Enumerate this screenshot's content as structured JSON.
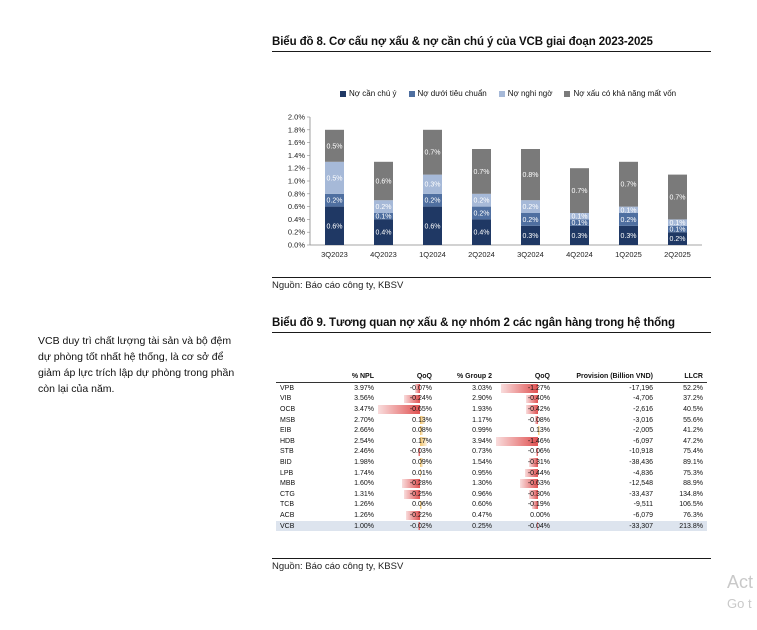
{
  "chart8": {
    "title": "Biểu đồ 8. Cơ cấu nợ xấu & nợ cần chú ý của VCB giai đoạn 2023-2025",
    "source": "Nguồn: Báo cáo công ty, KBSV"
  },
  "chart_data": {
    "type": "bar",
    "stacked": true,
    "title": "",
    "categories": [
      "3Q2023",
      "4Q2023",
      "1Q2024",
      "2Q2024",
      "3Q2024",
      "4Q2024",
      "1Q2025",
      "2Q2025"
    ],
    "series": [
      {
        "name": "Nợ cần chú ý",
        "color": "#1f3864",
        "values": [
          0.6,
          0.4,
          0.6,
          0.4,
          0.3,
          0.3,
          0.3,
          0.2
        ],
        "labels": [
          "0.6%",
          "0.4%",
          "0.6%",
          "0.4%",
          "0.3%",
          "0.3%",
          "0.3%",
          "0.2%"
        ]
      },
      {
        "name": "Nợ dưới tiêu chuẩn",
        "color": "#4f6fa0",
        "values": [
          0.2,
          0.1,
          0.2,
          0.2,
          0.2,
          0.1,
          0.2,
          0.1
        ],
        "labels": [
          "0.2%",
          "0.1%",
          "0.2%",
          "0.2%",
          "0.2%",
          "0.1%",
          "0.2%",
          "0.1%"
        ]
      },
      {
        "name": "Nợ nghi ngờ",
        "color": "#a6b9d8",
        "values": [
          0.5,
          0.2,
          0.3,
          0.2,
          0.2,
          0.1,
          0.1,
          0.1
        ],
        "labels": [
          "0.5%",
          "0.2%",
          "0.3%",
          "0.2%",
          "0.2%",
          "0.1%",
          "0.1%",
          "0.1%"
        ]
      },
      {
        "name": "Nợ xấu có khả năng mất vốn",
        "color": "#7a7a7a",
        "values": [
          0.5,
          0.6,
          0.7,
          0.7,
          0.8,
          0.7,
          0.7,
          0.7
        ],
        "labels": [
          "0.5%",
          "0.6%",
          "0.7%",
          "0.7%",
          "0.8%",
          "0.7%",
          "0.7%",
          "0.7%"
        ]
      }
    ],
    "ylim": [
      0,
      2.0
    ],
    "yticks": [
      "0.0%",
      "0.2%",
      "0.4%",
      "0.6%",
      "0.8%",
      "1.0%",
      "1.2%",
      "1.4%",
      "1.6%",
      "1.8%",
      "2.0%"
    ],
    "legend": "top",
    "grid": false
  },
  "side_text": "VCB duy trì chất lượng tài sản và bộ đệm dự phòng tốt nhất hệ thống, là cơ sở để giảm áp lực trích lập dự phòng trong phần còn lại của năm.",
  "chart9": {
    "title": "Biểu đồ 9. Tương quan nợ xấu & nợ nhóm 2 các ngân hàng trong hệ thống",
    "source": "Nguồn: Báo cáo công ty, KBSV",
    "headers": [
      "",
      "% NPL",
      "QoQ",
      "% Group 2",
      "QoQ",
      "Provision (Billion VND)",
      "LLCR"
    ],
    "rows": [
      {
        "bank": "VPB",
        "npl": "3.97%",
        "qoq1": "-0.07%",
        "qoq1_v": -0.07,
        "g2": "3.03%",
        "qoq2": "-1.27%",
        "qoq2_v": -1.27,
        "prov": "-17,196",
        "llcr": "52.2%"
      },
      {
        "bank": "VIB",
        "npl": "3.56%",
        "qoq1": "-0.24%",
        "qoq1_v": -0.24,
        "g2": "2.90%",
        "qoq2": "-0.40%",
        "qoq2_v": -0.4,
        "prov": "-4,706",
        "llcr": "37.2%"
      },
      {
        "bank": "OCB",
        "npl": "3.47%",
        "qoq1": "-0.65%",
        "qoq1_v": -0.65,
        "g2": "1.93%",
        "qoq2": "-0.42%",
        "qoq2_v": -0.42,
        "prov": "-2,616",
        "llcr": "40.5%"
      },
      {
        "bank": "MSB",
        "npl": "2.70%",
        "qoq1": "0.13%",
        "qoq1_v": 0.13,
        "g2": "1.17%",
        "qoq2": "-0.08%",
        "qoq2_v": -0.08,
        "prov": "-3,016",
        "llcr": "55.6%"
      },
      {
        "bank": "EIB",
        "npl": "2.66%",
        "qoq1": "0.08%",
        "qoq1_v": 0.08,
        "g2": "0.99%",
        "qoq2": "0.13%",
        "qoq2_v": 0.13,
        "prov": "-2,005",
        "llcr": "41.2%"
      },
      {
        "bank": "HDB",
        "npl": "2.54%",
        "qoq1": "0.17%",
        "qoq1_v": 0.17,
        "g2": "3.94%",
        "qoq2": "-1.46%",
        "qoq2_v": -1.46,
        "prov": "-6,097",
        "llcr": "47.2%"
      },
      {
        "bank": "STB",
        "npl": "2.46%",
        "qoq1": "-0.03%",
        "qoq1_v": -0.03,
        "g2": "0.73%",
        "qoq2": "-0.06%",
        "qoq2_v": -0.06,
        "prov": "-10,918",
        "llcr": "75.4%"
      },
      {
        "bank": "BID",
        "npl": "1.98%",
        "qoq1": "0.09%",
        "qoq1_v": 0.09,
        "g2": "1.54%",
        "qoq2": "-0.31%",
        "qoq2_v": -0.31,
        "prov": "-38,436",
        "llcr": "89.1%"
      },
      {
        "bank": "LPB",
        "npl": "1.74%",
        "qoq1": "0.01%",
        "qoq1_v": 0.01,
        "g2": "0.95%",
        "qoq2": "-0.44%",
        "qoq2_v": -0.44,
        "prov": "-4,836",
        "llcr": "75.3%"
      },
      {
        "bank": "MBB",
        "npl": "1.60%",
        "qoq1": "-0.28%",
        "qoq1_v": -0.28,
        "g2": "1.30%",
        "qoq2": "-0.63%",
        "qoq2_v": -0.63,
        "prov": "-12,548",
        "llcr": "88.9%"
      },
      {
        "bank": "CTG",
        "npl": "1.31%",
        "qoq1": "-0.25%",
        "qoq1_v": -0.25,
        "g2": "0.96%",
        "qoq2": "-0.30%",
        "qoq2_v": -0.3,
        "prov": "-33,437",
        "llcr": "134.8%"
      },
      {
        "bank": "TCB",
        "npl": "1.26%",
        "qoq1": "0.06%",
        "qoq1_v": 0.06,
        "g2": "0.60%",
        "qoq2": "-0.19%",
        "qoq2_v": -0.19,
        "prov": "-9,511",
        "llcr": "106.5%"
      },
      {
        "bank": "ACB",
        "npl": "1.26%",
        "qoq1": "-0.22%",
        "qoq1_v": -0.22,
        "g2": "0.47%",
        "qoq2": "0.00%",
        "qoq2_v": 0.0,
        "prov": "-6,079",
        "llcr": "76.3%"
      },
      {
        "bank": "VCB",
        "npl": "1.00%",
        "qoq1": "-0.02%",
        "qoq1_v": -0.02,
        "g2": "0.25%",
        "qoq2": "-0.04%",
        "qoq2_v": -0.04,
        "prov": "-33,307",
        "llcr": "213.8%",
        "highlight": true
      }
    ]
  },
  "watermark": {
    "line1": "Act",
    "line2": "Go t"
  },
  "colors": {
    "neg_bar": "#e05252",
    "pos_bar": "#f3c46b",
    "highlight_row": "#dde4ee"
  }
}
